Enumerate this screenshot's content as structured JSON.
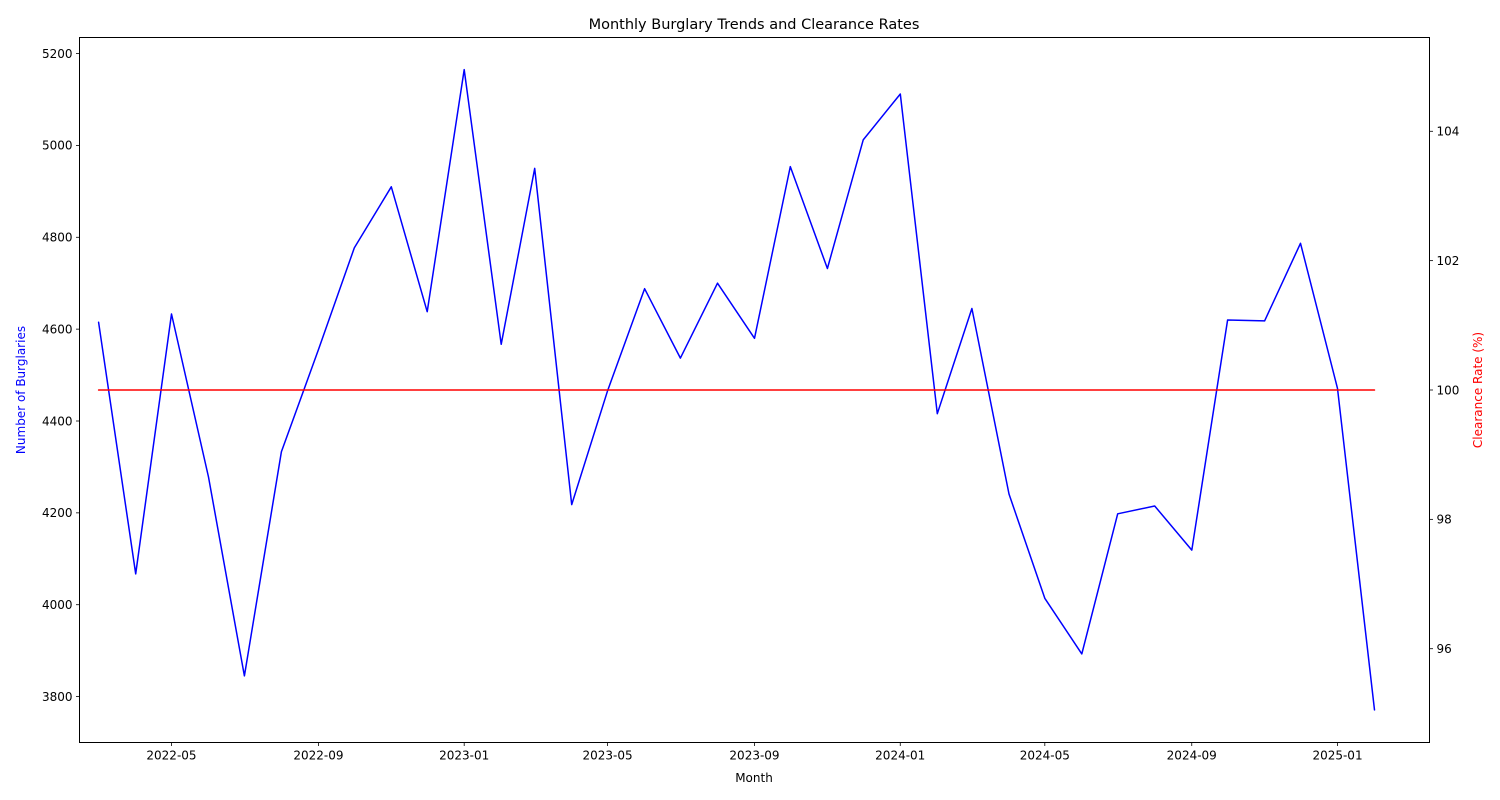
{
  "chart_data": {
    "type": "line",
    "title": "Monthly Burglary Trends and Clearance Rates",
    "xlabel": "Month",
    "ylabel_left": "Number of Burglaries",
    "ylabel_right": "Clearance Rate (%)",
    "left_axis_color": "#0000ff",
    "right_axis_color": "#ff0000",
    "grid": false,
    "x": [
      "2022-03",
      "2022-04",
      "2022-05",
      "2022-06",
      "2022-07",
      "2022-08",
      "2022-09",
      "2022-10",
      "2022-11",
      "2022-12",
      "2023-01",
      "2023-02",
      "2023-03",
      "2023-04",
      "2023-05",
      "2023-06",
      "2023-07",
      "2023-08",
      "2023-09",
      "2023-10",
      "2023-11",
      "2023-12",
      "2024-01",
      "2024-02",
      "2024-03",
      "2024-04",
      "2024-05",
      "2024-06",
      "2024-07",
      "2024-08",
      "2024-09",
      "2024-10",
      "2024-11",
      "2024-12",
      "2025-01",
      "2025-02"
    ],
    "x_range": [
      "2022-02-13",
      "2025-03-19"
    ],
    "x_ticks": [
      "2022-05",
      "2022-09",
      "2023-01",
      "2023-05",
      "2023-09",
      "2024-01",
      "2024-05",
      "2024-09",
      "2025-01"
    ],
    "y_left_range": [
      3700,
      5235
    ],
    "y_left_ticks": [
      3800,
      4000,
      4200,
      4400,
      4600,
      4800,
      5000,
      5200
    ],
    "y_right_range": [
      94.55,
      105.45
    ],
    "y_right_ticks": [
      96,
      98,
      100,
      102,
      104
    ],
    "series": [
      {
        "axis": "left",
        "color": "#0000ff",
        "values": [
          4615,
          4067,
          4633,
          4278,
          3845,
          4333,
          4555,
          4777,
          4910,
          4638,
          5165,
          4567,
          4950,
          4218,
          4466,
          4688,
          4537,
          4700,
          4580,
          4954,
          4732,
          5012,
          5112,
          4416,
          4645,
          4241,
          4014,
          3893,
          4198,
          4215,
          4119,
          4620,
          4618,
          4787,
          4471,
          3771
        ]
      },
      {
        "axis": "right",
        "color": "#ff0000",
        "values": [
          100,
          100,
          100,
          100,
          100,
          100,
          100,
          100,
          100,
          100,
          100,
          100,
          100,
          100,
          100,
          100,
          100,
          100,
          100,
          100,
          100,
          100,
          100,
          100,
          100,
          100,
          100,
          100,
          100,
          100,
          100,
          100,
          100,
          100,
          100,
          100
        ]
      }
    ]
  }
}
